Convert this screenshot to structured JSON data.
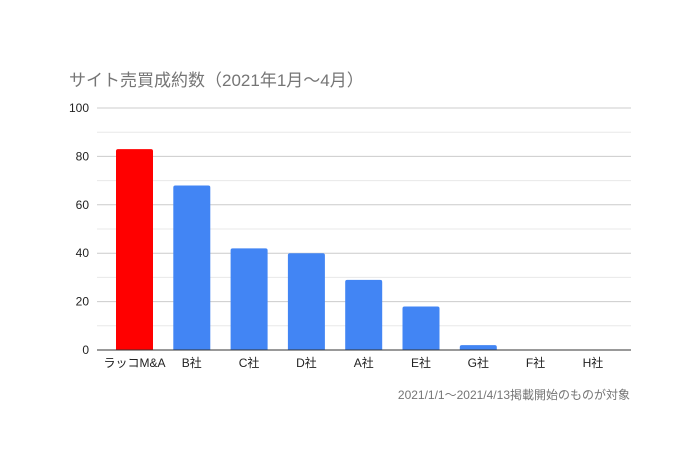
{
  "chart_data": {
    "type": "bar",
    "title": "サイト売買成約数（2021年1月〜4月）",
    "note": "2021/1/1〜2021/4/13掲載開始のものが対象",
    "categories": [
      "ラッコM&A",
      "B社",
      "C社",
      "D社",
      "A社",
      "E社",
      "G社",
      "F社",
      "H社"
    ],
    "values": [
      83,
      68,
      42,
      40,
      29,
      18,
      2,
      0,
      0
    ],
    "colors": [
      "#ff0000",
      "#4285f4",
      "#4285f4",
      "#4285f4",
      "#4285f4",
      "#4285f4",
      "#4285f4",
      "#4285f4",
      "#4285f4"
    ],
    "ylim": [
      0,
      100
    ],
    "yticks": [
      0,
      20,
      40,
      60,
      80,
      100
    ],
    "grid": true,
    "xlabel": "",
    "ylabel": ""
  }
}
